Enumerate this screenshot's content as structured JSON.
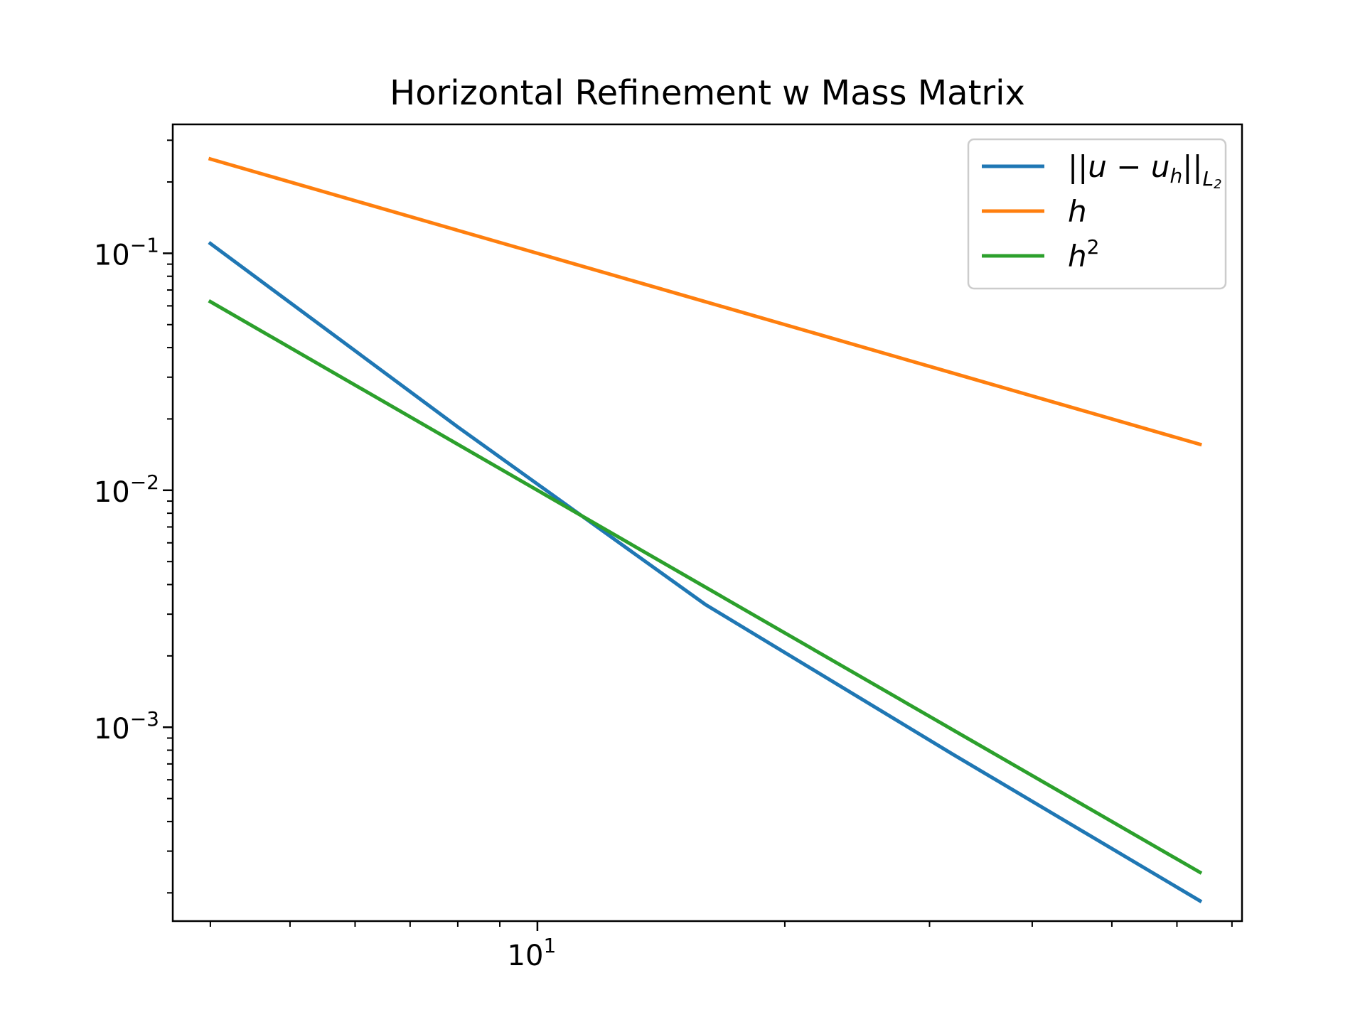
{
  "chart_data": {
    "type": "line",
    "title": "Horizontal Refinement w Mass Matrix",
    "xlabel": "",
    "ylabel": "",
    "xscale": "log",
    "yscale": "log",
    "xlim": [
      3.6,
      72
    ],
    "ylim": [
      0.000152,
      0.35
    ],
    "grid": false,
    "legend_position": "top-right",
    "x_ticks": [
      {
        "value": 10,
        "base": "10",
        "exp": "1"
      }
    ],
    "y_ticks": [
      {
        "value": 0.1,
        "base": "10",
        "exp": "−1"
      },
      {
        "value": 0.01,
        "base": "10",
        "exp": "−2"
      },
      {
        "value": 0.001,
        "base": "10",
        "exp": "−3"
      }
    ],
    "x": [
      4,
      8,
      16,
      32,
      64
    ],
    "series": [
      {
        "name": "||u − u_h||_{L2}",
        "legend_parts": [
          "||u − u",
          "h",
          "||",
          "L",
          "2"
        ],
        "color": "#1f77b4",
        "values": [
          0.11,
          0.0185,
          0.0033,
          0.00077,
          0.000185
        ]
      },
      {
        "name": "h",
        "legend_parts": [
          "h"
        ],
        "color": "#ff7f0e",
        "values": [
          0.25,
          0.125,
          0.0625,
          0.03125,
          0.015625
        ]
      },
      {
        "name": "h^2",
        "legend_parts": [
          "h",
          "2"
        ],
        "color": "#2ca02c",
        "values": [
          0.0625,
          0.015625,
          0.00390625,
          0.0009765625,
          0.000244140625
        ]
      }
    ]
  }
}
